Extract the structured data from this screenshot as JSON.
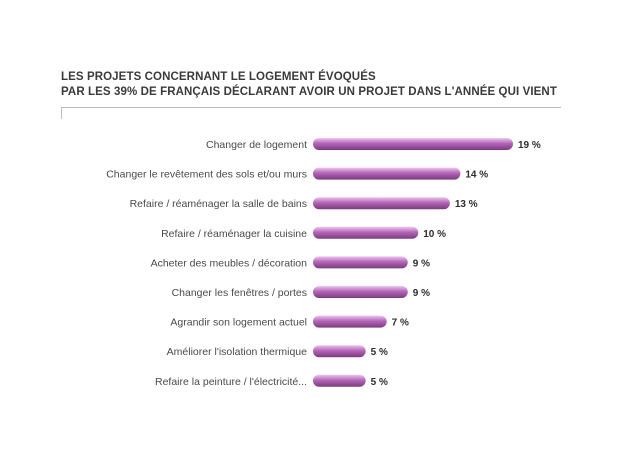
{
  "chart_data": {
    "type": "bar",
    "orientation": "horizontal",
    "title": "LES PROJETS CONCERNANT LE LOGEMENT ÉVOQUÉS",
    "subtitle": "PAR LES 39% DE FRANÇAIS DÉCLARANT AVOIR UN PROJET DANS L'ANNÉE QUI VIENT",
    "categories": [
      "Changer de logement",
      "Changer le revêtement des sols et/ou murs",
      "Refaire / réaménager la salle de bains",
      "Refaire / réaménager la cuisine",
      "Acheter des meubles / décoration",
      "Changer les fenêtres / portes",
      "Agrandir son logement actuel",
      "Améliorer l'isolation thermique",
      "Refaire la peinture / l'électricité..."
    ],
    "values": [
      19,
      14,
      13,
      10,
      9,
      9,
      7,
      5,
      5
    ],
    "value_labels": [
      "19 %",
      "14 %",
      "13 %",
      "10 %",
      "9 %",
      "9 %",
      "7 %",
      "5 %",
      "5 %"
    ],
    "unit": "%",
    "xlim": [
      0,
      19
    ],
    "grid": false,
    "bar_color": "#b565b8",
    "bar_highlight": "#ecc6ee",
    "bar_shadow": "#7a3c7e"
  }
}
